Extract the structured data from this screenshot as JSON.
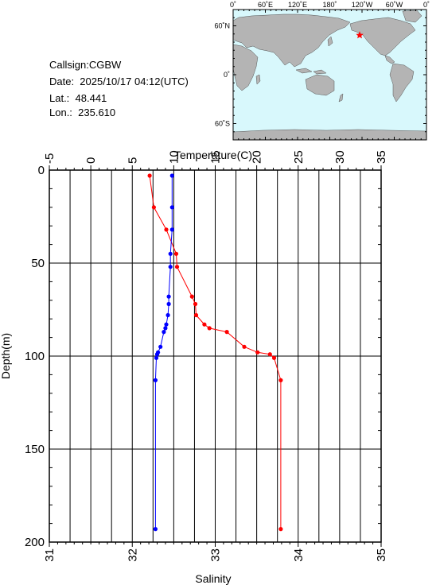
{
  "station": {
    "callsign": "Callsign:CGBW",
    "date": "Date:  2025/10/17 04:12(UTC)",
    "lat": "Lat.:  48.441",
    "lon": "Lon.:  235.610"
  },
  "map": {
    "lon_ticks": [
      "0˚",
      "60˚E",
      "120˚E",
      "180˚",
      "120˚W",
      "60˚W",
      "0˚"
    ],
    "lat_ticks": [
      "60˚N",
      "0˚",
      "60˚S"
    ],
    "station_marker": {
      "lat": 48.441,
      "lon": 235.61
    },
    "marker_color": "#ff0000",
    "ocean_color": "#d8f8fc",
    "land_color": "#b4b4b4"
  },
  "chart_data": {
    "type": "line",
    "y_label": "Depth(m)",
    "y_range": [
      0,
      200
    ],
    "y_ticks": [
      0,
      50,
      100,
      150,
      200
    ],
    "y_inverted": true,
    "temperature_axis": {
      "label": "Temperature(C)",
      "range": [
        -5,
        35
      ],
      "ticks": [
        -5,
        0,
        5,
        10,
        15,
        20,
        25,
        30,
        35
      ]
    },
    "salinity_axis": {
      "label": "Salinity",
      "range": [
        31,
        35
      ],
      "ticks": [
        31,
        32,
        33,
        34,
        35
      ]
    },
    "grid": true,
    "series": [
      {
        "axis": "temperature",
        "color": "#ff0000",
        "points": [
          {
            "depth": 3,
            "value": 7.1
          },
          {
            "depth": 20,
            "value": 7.6
          },
          {
            "depth": 32,
            "value": 9.1
          },
          {
            "depth": 45,
            "value": 10.3
          },
          {
            "depth": 52,
            "value": 10.4
          },
          {
            "depth": 68,
            "value": 12.2
          },
          {
            "depth": 72,
            "value": 12.6
          },
          {
            "depth": 78,
            "value": 12.7
          },
          {
            "depth": 83,
            "value": 13.7
          },
          {
            "depth": 85,
            "value": 14.3
          },
          {
            "depth": 87,
            "value": 16.4
          },
          {
            "depth": 95,
            "value": 18.5
          },
          {
            "depth": 98,
            "value": 20.1
          },
          {
            "depth": 99,
            "value": 21.6
          },
          {
            "depth": 101,
            "value": 22.1
          },
          {
            "depth": 113,
            "value": 22.9
          },
          {
            "depth": 193,
            "value": 22.9
          }
        ]
      },
      {
        "axis": "salinity",
        "color": "#0000ff",
        "points": [
          {
            "depth": 3,
            "value": 32.48
          },
          {
            "depth": 20,
            "value": 32.48
          },
          {
            "depth": 32,
            "value": 32.48
          },
          {
            "depth": 45,
            "value": 32.46
          },
          {
            "depth": 52,
            "value": 32.46
          },
          {
            "depth": 68,
            "value": 32.44
          },
          {
            "depth": 72,
            "value": 32.44
          },
          {
            "depth": 78,
            "value": 32.43
          },
          {
            "depth": 83,
            "value": 32.41
          },
          {
            "depth": 85,
            "value": 32.4
          },
          {
            "depth": 87,
            "value": 32.38
          },
          {
            "depth": 95,
            "value": 32.34
          },
          {
            "depth": 98,
            "value": 32.31
          },
          {
            "depth": 99,
            "value": 32.3
          },
          {
            "depth": 101,
            "value": 32.29
          },
          {
            "depth": 113,
            "value": 32.28
          },
          {
            "depth": 193,
            "value": 32.28
          }
        ]
      }
    ]
  }
}
